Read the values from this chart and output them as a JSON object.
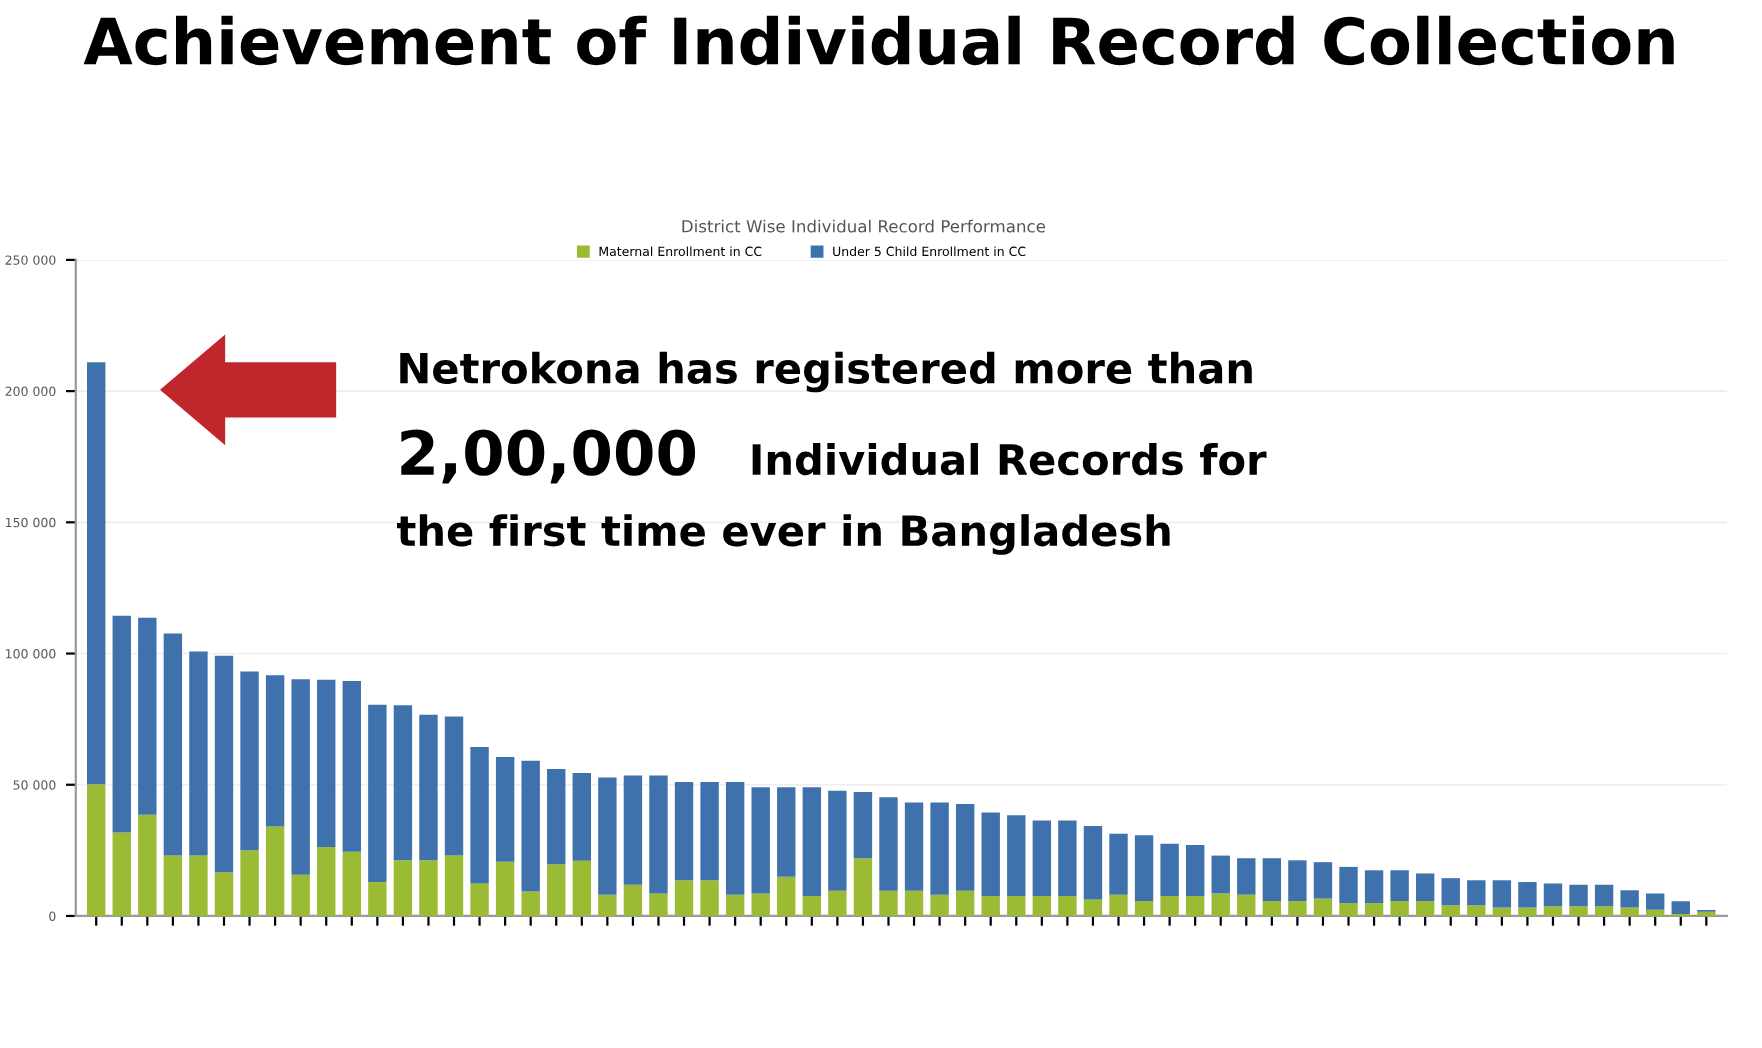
{
  "chart_data": {
    "type": "bar",
    "stacked": true,
    "title": "Achievement of Individual Record Collection",
    "subtitle": "District Wise Individual Record Performance",
    "annotations": [
      "Netrokona has registered more than",
      "2,00,000",
      "Individual Records for",
      "the first time ever in Bangladesh"
    ],
    "categories": [
      null,
      null,
      null,
      null,
      null,
      null,
      null,
      null,
      null,
      null,
      null,
      null,
      null,
      null,
      null,
      null,
      null,
      null,
      null,
      null,
      null,
      null,
      null,
      null,
      null,
      null,
      null,
      null,
      null,
      null,
      null,
      null,
      null,
      null,
      null,
      null,
      null,
      null,
      null,
      null,
      null,
      null,
      null,
      null,
      null,
      null,
      null,
      null,
      null,
      null,
      null,
      null,
      null,
      null,
      null,
      null,
      null,
      null,
      null,
      null,
      null,
      null,
      null,
      null
    ],
    "series": [
      {
        "name": "Maternal Enrollment in CC",
        "color": "#9bbb34",
        "values": [
          50200,
          31800,
          38600,
          23000,
          23000,
          16700,
          25000,
          34100,
          15700,
          26300,
          24500,
          12900,
          21200,
          21200,
          23000,
          12400,
          20700,
          9300,
          19700,
          21000,
          8100,
          11900,
          8600,
          13600,
          13600,
          8100,
          8600,
          14900,
          7600,
          9600,
          22000,
          9600,
          9600,
          8100,
          9600,
          7600,
          7600,
          7600,
          7600,
          6300,
          8100,
          5700,
          7600,
          7600,
          8600,
          8100,
          5700,
          5700,
          6600,
          4900,
          4900,
          5700,
          5700,
          4100,
          4100,
          3200,
          3200,
          3700,
          3700,
          3700,
          3200,
          2400,
          700,
          1600
        ]
      },
      {
        "name": "Under 5 Child Enrollment in CC",
        "color": "#3f72ad",
        "values": [
          160800,
          82600,
          75000,
          84600,
          77800,
          82500,
          68200,
          57600,
          74500,
          63700,
          65000,
          67600,
          59100,
          55500,
          53000,
          52000,
          39900,
          49800,
          36300,
          33500,
          44700,
          41600,
          44900,
          37400,
          37400,
          42900,
          40400,
          34100,
          41400,
          38100,
          25200,
          35600,
          33600,
          35100,
          33100,
          31800,
          30800,
          28800,
          28800,
          28000,
          23200,
          25100,
          19900,
          19400,
          14400,
          13900,
          16300,
          15500,
          13900,
          13800,
          12500,
          11700,
          10500,
          10300,
          9500,
          10400,
          9700,
          8700,
          8200,
          8200,
          6600,
          6200,
          4900,
          700
        ]
      }
    ],
    "ylim": [
      0,
      250000
    ],
    "yticks": [
      {
        "value": 0,
        "label": "0"
      },
      {
        "value": 50000,
        "label": "50 000"
      },
      {
        "value": 100000,
        "label": "100 000"
      },
      {
        "value": 150000,
        "label": "150 000"
      },
      {
        "value": 200000,
        "label": "200 000"
      },
      {
        "value": 250000,
        "label": "250 000"
      }
    ],
    "grid": "y",
    "legend": "top"
  }
}
